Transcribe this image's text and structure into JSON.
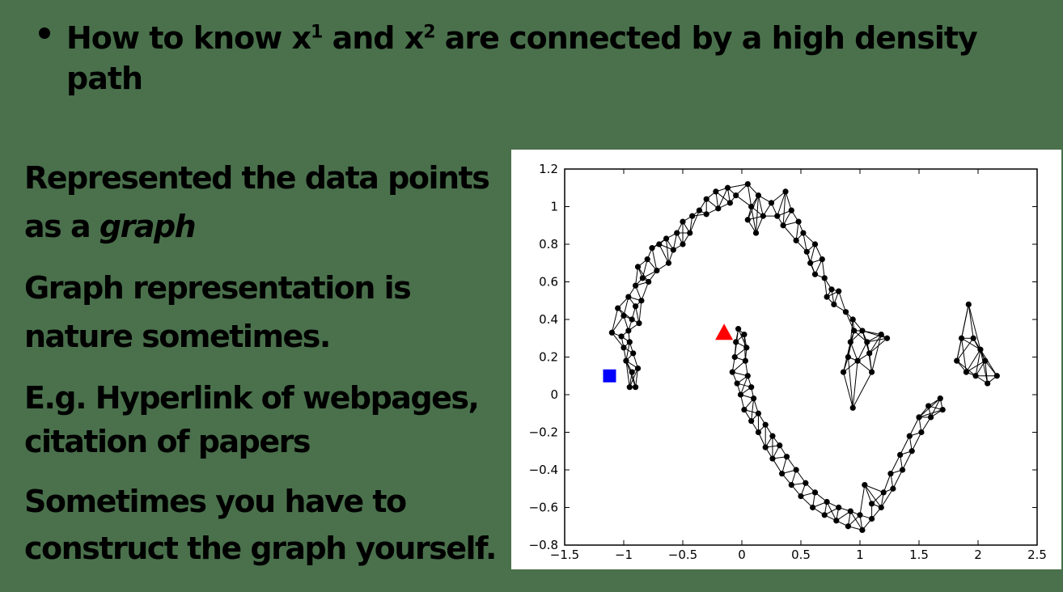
{
  "slide": {
    "bullet": {
      "pre": "How to know x",
      "sup1": "1",
      "mid": " and x",
      "sup2": "2",
      "post": " are connected  by a high density path"
    },
    "lines": {
      "l1": "Represented the data points",
      "l2a": "as a ",
      "l2b": "graph",
      "l3": "Graph representation is",
      "l4": "nature sometimes.",
      "l5": "E.g. Hyperlink of webpages,",
      "l6": "citation of papers",
      "l7": "Sometimes you  have to",
      "l8": "construct the graph yourself."
    }
  },
  "chart_data": {
    "type": "scatter",
    "title": "",
    "xlabel": "",
    "ylabel": "",
    "xlim": [
      -1.5,
      2.5
    ],
    "ylim": [
      -0.8,
      1.2
    ],
    "x_ticks": [
      "−1.5",
      "−1",
      "−0.5",
      "0",
      "0.5",
      "1",
      "1.5",
      "2",
      "2.5"
    ],
    "y_ticks": [
      "1.2",
      "1",
      "0.8",
      "0.6",
      "0.4",
      "0.2",
      "0",
      "−0.2",
      "−0.4",
      "−0.6",
      "−0.8"
    ],
    "grid": false,
    "edge_k": 4,
    "colors": {
      "points": "#000000",
      "edges": "#000000",
      "start_marker": "#0000ff",
      "end_marker": "#ff0000"
    },
    "series": [
      {
        "marker": "circle",
        "points": [
          [
            -0.95,
            0.04
          ],
          [
            -0.9,
            0.04
          ],
          [
            -0.93,
            0.12
          ],
          [
            -0.88,
            0.14
          ],
          [
            -0.98,
            0.18
          ],
          [
            -0.92,
            0.22
          ],
          [
            -1.0,
            0.25
          ],
          [
            -0.95,
            0.28
          ],
          [
            -1.02,
            0.31
          ],
          [
            -0.96,
            0.34
          ],
          [
            -1.1,
            0.33
          ],
          [
            -0.93,
            0.4
          ],
          [
            -1.0,
            0.42
          ],
          [
            -0.87,
            0.38
          ],
          [
            -1.05,
            0.46
          ],
          [
            -0.9,
            0.47
          ],
          [
            -0.96,
            0.52
          ],
          [
            -0.85,
            0.5
          ],
          [
            -0.9,
            0.58
          ],
          [
            -0.84,
            0.62
          ],
          [
            -0.79,
            0.6
          ],
          [
            -0.88,
            0.68
          ],
          [
            -0.8,
            0.72
          ],
          [
            -0.72,
            0.66
          ],
          [
            -0.76,
            0.78
          ],
          [
            -0.7,
            0.8
          ],
          [
            -0.62,
            0.7
          ],
          [
            -0.64,
            0.83
          ],
          [
            -0.55,
            0.86
          ],
          [
            -0.58,
            0.77
          ],
          [
            -0.5,
            0.8
          ],
          [
            -0.5,
            0.92
          ],
          [
            -0.42,
            0.95
          ],
          [
            -0.44,
            0.86
          ],
          [
            -0.36,
            0.98
          ],
          [
            -0.3,
            1.04
          ],
          [
            -0.22,
            1.08
          ],
          [
            -0.3,
            0.96
          ],
          [
            -0.2,
            0.99
          ],
          [
            -0.12,
            1.1
          ],
          [
            -0.1,
            1.02
          ],
          [
            -0.05,
            1.06
          ],
          [
            0.05,
            1.12
          ],
          [
            0.08,
            1.0
          ],
          [
            0.14,
            1.06
          ],
          [
            0.05,
            0.93
          ],
          [
            0.12,
            0.86
          ],
          [
            0.18,
            0.95
          ],
          [
            0.25,
            1.02
          ],
          [
            0.3,
            0.95
          ],
          [
            0.37,
            1.08
          ],
          [
            0.42,
            0.98
          ],
          [
            0.35,
            0.9
          ],
          [
            0.48,
            0.92
          ],
          [
            0.52,
            0.86
          ],
          [
            0.46,
            0.82
          ],
          [
            0.55,
            0.76
          ],
          [
            0.62,
            0.8
          ],
          [
            0.58,
            0.7
          ],
          [
            0.68,
            0.72
          ],
          [
            0.7,
            0.62
          ],
          [
            0.62,
            0.64
          ],
          [
            0.76,
            0.56
          ],
          [
            0.72,
            0.52
          ],
          [
            0.82,
            0.55
          ],
          [
            0.78,
            0.48
          ],
          [
            -0.03,
            0.35
          ],
          [
            0.02,
            0.32
          ],
          [
            -0.05,
            0.28
          ],
          [
            0.04,
            0.25
          ],
          [
            -0.06,
            0.2
          ],
          [
            0.03,
            0.18
          ],
          [
            -0.08,
            0.12
          ],
          [
            0.05,
            0.1
          ],
          [
            -0.04,
            0.06
          ],
          [
            0.08,
            0.04
          ],
          [
            -0.01,
            0.0
          ],
          [
            0.1,
            -0.02
          ],
          [
            0.02,
            -0.08
          ],
          [
            0.14,
            -0.1
          ],
          [
            0.08,
            -0.14
          ],
          [
            0.2,
            -0.16
          ],
          [
            0.14,
            -0.2
          ],
          [
            0.26,
            -0.22
          ],
          [
            0.2,
            -0.28
          ],
          [
            0.32,
            -0.27
          ],
          [
            0.26,
            -0.34
          ],
          [
            0.38,
            -0.33
          ],
          [
            0.34,
            -0.42
          ],
          [
            0.46,
            -0.4
          ],
          [
            0.42,
            -0.48
          ],
          [
            0.54,
            -0.47
          ],
          [
            0.5,
            -0.54
          ],
          [
            0.62,
            -0.52
          ],
          [
            0.6,
            -0.6
          ],
          [
            0.72,
            -0.57
          ],
          [
            0.7,
            -0.64
          ],
          [
            0.82,
            -0.6
          ],
          [
            0.8,
            -0.67
          ],
          [
            0.92,
            -0.62
          ],
          [
            0.9,
            -0.7
          ],
          [
            1.0,
            -0.64
          ],
          [
            1.02,
            -0.72
          ],
          [
            1.1,
            -0.66
          ],
          [
            1.1,
            -0.58
          ],
          [
            1.04,
            -0.48
          ],
          [
            1.18,
            -0.6
          ],
          [
            1.2,
            -0.52
          ],
          [
            1.28,
            -0.5
          ],
          [
            1.26,
            -0.42
          ],
          [
            1.36,
            -0.4
          ],
          [
            1.34,
            -0.32
          ],
          [
            1.44,
            -0.3
          ],
          [
            1.42,
            -0.22
          ],
          [
            1.52,
            -0.2
          ],
          [
            1.5,
            -0.12
          ],
          [
            1.6,
            -0.12
          ],
          [
            1.58,
            -0.06
          ],
          [
            1.7,
            -0.08
          ],
          [
            1.68,
            -0.02
          ],
          [
            0.95,
            0.34
          ],
          [
            1.02,
            0.34
          ],
          [
            0.92,
            0.28
          ],
          [
            1.06,
            0.28
          ],
          [
            0.9,
            0.2
          ],
          [
            1.08,
            0.22
          ],
          [
            0.86,
            0.12
          ],
          [
            1.1,
            0.12
          ],
          [
            0.98,
            0.18
          ],
          [
            0.94,
            -0.07
          ],
          [
            0.88,
            0.44
          ],
          [
            0.94,
            0.4
          ],
          [
            1.18,
            0.32
          ],
          [
            1.23,
            0.3
          ],
          [
            1.92,
            0.48
          ],
          [
            1.86,
            0.3
          ],
          [
            1.96,
            0.3
          ],
          [
            1.82,
            0.18
          ],
          [
            2.02,
            0.24
          ],
          [
            1.9,
            0.12
          ],
          [
            2.06,
            0.18
          ],
          [
            1.98,
            0.1
          ],
          [
            2.16,
            0.1
          ],
          [
            2.08,
            0.06
          ]
        ]
      }
    ],
    "start_marker": {
      "marker": "square",
      "x": -1.12,
      "y": 0.1
    },
    "end_marker": {
      "marker": "triangle",
      "x": -0.15,
      "y": 0.33
    }
  }
}
